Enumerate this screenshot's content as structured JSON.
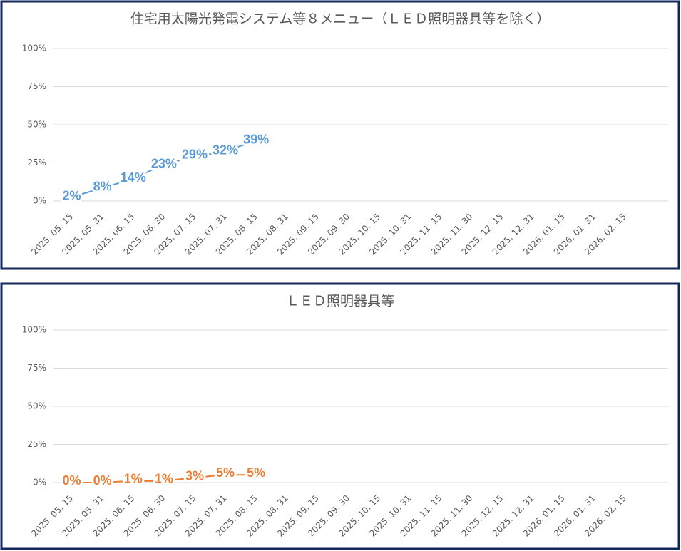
{
  "chart_data": [
    {
      "type": "line",
      "title": "住宅用太陽光発電システム等８メニュー（ＬＥＤ照明器具等を除く）",
      "categories": [
        "2025. 05. 15",
        "2025. 05. 31",
        "2025. 06. 15",
        "2025. 06. 30",
        "2025. 07. 15",
        "2025. 07. 31",
        "2025. 08. 15",
        "2025. 08. 31",
        "2025. 09. 15",
        "2025. 09. 30",
        "2025. 10. 15",
        "2025. 10. 31",
        "2025. 11. 15",
        "2025. 11. 30",
        "2025. 12. 15",
        "2025. 12. 31",
        "2026. 01. 15",
        "2026. 01. 31",
        "2026. 02. 15"
      ],
      "values": [
        2,
        8,
        14,
        23,
        29,
        32,
        39,
        null,
        null,
        null,
        null,
        null,
        null,
        null,
        null,
        null,
        null,
        null,
        null
      ],
      "value_labels": [
        "2%",
        "8%",
        "14%",
        "23%",
        "29%",
        "32%",
        "39%",
        null,
        null,
        null,
        null,
        null,
        null,
        null,
        null,
        null,
        null,
        null,
        null
      ],
      "color": "#5b9bd5",
      "ylim": [
        0,
        100
      ],
      "yticks": [
        {
          "value": 0,
          "label": "0%"
        },
        {
          "value": 25,
          "label": "25%"
        },
        {
          "value": 50,
          "label": "50%"
        },
        {
          "value": 75,
          "label": "75%"
        },
        {
          "value": 100,
          "label": "100%"
        }
      ],
      "grid": true
    },
    {
      "type": "line",
      "title": "ＬＥＤ照明器具等",
      "categories": [
        "2025. 05. 15",
        "2025. 05. 31",
        "2025. 06. 15",
        "2025. 06. 30",
        "2025. 07. 15",
        "2025. 07. 31",
        "2025. 08. 15",
        "2025. 08. 31",
        "2025. 09. 15",
        "2025. 09. 30",
        "2025. 10. 15",
        "2025. 10. 31",
        "2025. 11. 15",
        "2025. 11. 30",
        "2025. 12. 15",
        "2025. 12. 31",
        "2026. 01. 15",
        "2026. 01. 31",
        "2026. 02. 15"
      ],
      "values": [
        0,
        0,
        1,
        1,
        3,
        5,
        5,
        null,
        null,
        null,
        null,
        null,
        null,
        null,
        null,
        null,
        null,
        null,
        null
      ],
      "value_labels": [
        "0%",
        "0%",
        "1%",
        "1%",
        "3%",
        "5%",
        "5%",
        null,
        null,
        null,
        null,
        null,
        null,
        null,
        null,
        null,
        null,
        null,
        null
      ],
      "color": "#ed7d31",
      "ylim": [
        0,
        100
      ],
      "yticks": [
        {
          "value": 0,
          "label": "0%"
        },
        {
          "value": 25,
          "label": "25%"
        },
        {
          "value": 50,
          "label": "50%"
        },
        {
          "value": 75,
          "label": "75%"
        },
        {
          "value": 100,
          "label": "100%"
        }
      ],
      "grid": true
    }
  ]
}
